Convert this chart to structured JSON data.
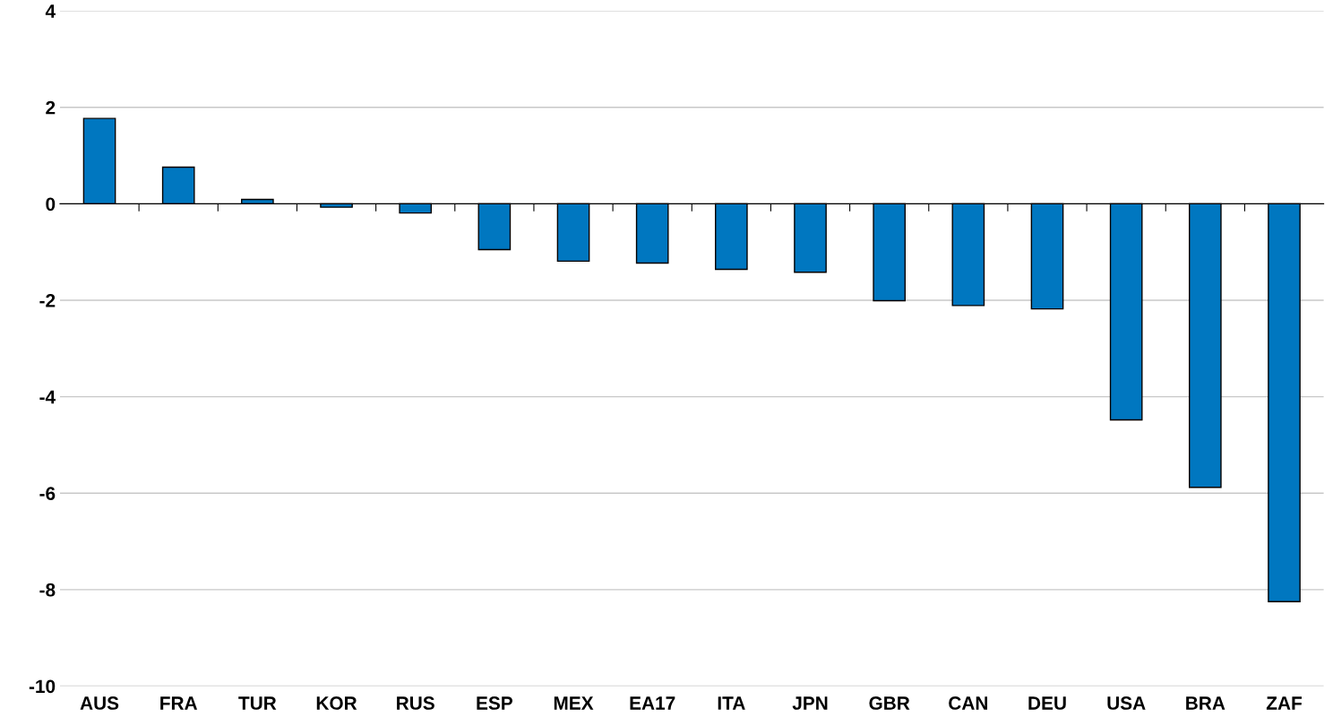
{
  "chart_data": {
    "type": "bar",
    "categories": [
      "AUS",
      "FRA",
      "TUR",
      "KOR",
      "RUS",
      "ESP",
      "MEX",
      "EA17",
      "ITA",
      "JPN",
      "GBR",
      "CAN",
      "DEU",
      "USA",
      "BRA",
      "ZAF"
    ],
    "values": [
      1.77,
      0.76,
      0.09,
      -0.07,
      -0.19,
      -0.95,
      -1.19,
      -1.23,
      -1.36,
      -1.42,
      -2.01,
      -2.11,
      -2.18,
      -4.48,
      -5.88,
      -8.25
    ],
    "color": "#0077c0",
    "ylim": [
      -10,
      4
    ],
    "yticks": [
      -10,
      -8,
      -6,
      -4,
      -2,
      0,
      2,
      4
    ],
    "grid": "y"
  }
}
